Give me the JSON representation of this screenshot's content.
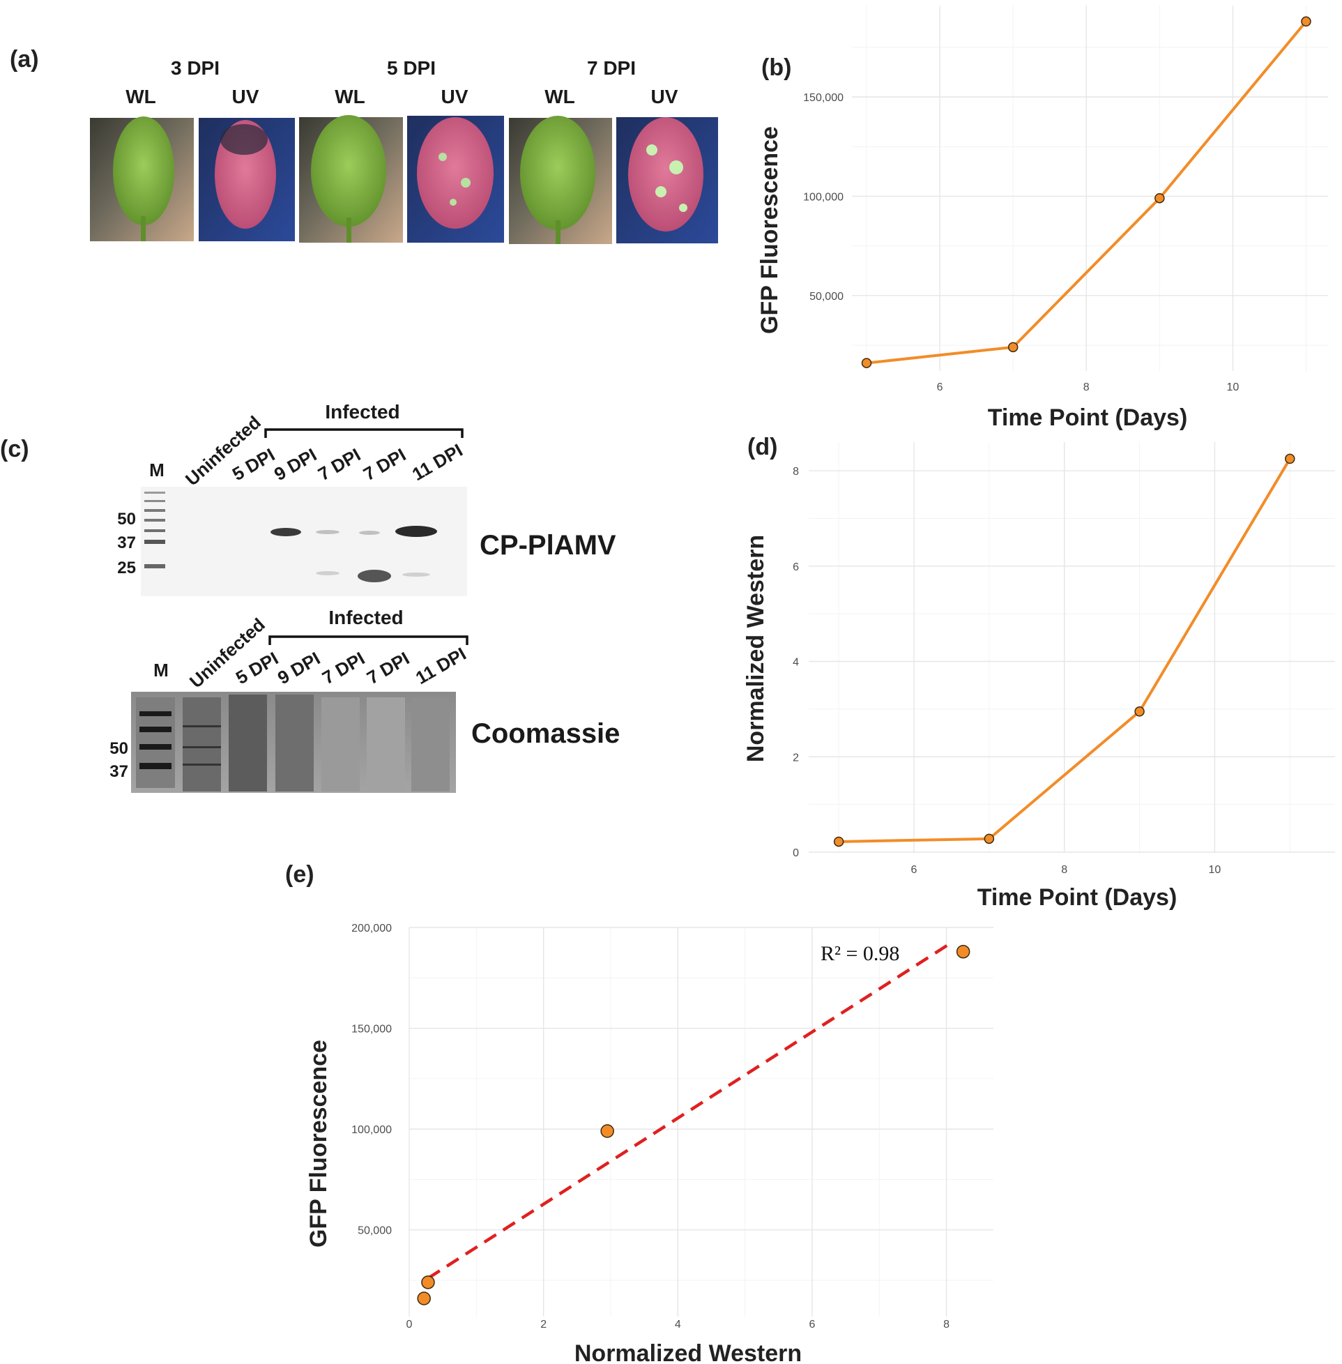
{
  "panels": {
    "a": {
      "label": "(a)",
      "groups": [
        {
          "title": "3 DPI",
          "wl": "WL",
          "uv": "UV"
        },
        {
          "title": "5 DPI",
          "wl": "WL",
          "uv": "UV"
        },
        {
          "title": "7 DPI",
          "wl": "WL",
          "uv": "UV"
        }
      ]
    },
    "c": {
      "label": "(c)",
      "blot1": {
        "marker": "M",
        "lanes": [
          "Uninfected",
          "5 DPI",
          "9 DPI",
          "7 DPI",
          "7 DPI",
          "11 DPI"
        ],
        "infected_label": "Infected",
        "mw": [
          "50",
          "37",
          "25"
        ],
        "name": "CP-PlAMV"
      },
      "blot2": {
        "marker": "M",
        "lanes": [
          "Uninfected",
          "5 DPI",
          "9 DPI",
          "7 DPI",
          "7 DPI",
          "11 DPI"
        ],
        "infected_label": "Infected",
        "mw": [
          "50",
          "37"
        ],
        "name": "Coomassie"
      }
    },
    "b": {
      "label": "(b)"
    },
    "d": {
      "label": "(d)"
    },
    "e": {
      "label": "(e)",
      "annotation": "R² = 0.98"
    }
  },
  "colors": {
    "series": "#f28c28",
    "fit": "#e02020"
  },
  "chart_data": [
    {
      "id": "b",
      "type": "line",
      "title": "",
      "xlabel": "Time Point (Days)",
      "ylabel": "GFP Fluorescence",
      "x": [
        5,
        7,
        9,
        11
      ],
      "y": [
        16000,
        24000,
        99000,
        188000
      ],
      "xlim": [
        4.8,
        11.3
      ],
      "ylim": [
        12000,
        196000
      ],
      "xticks": [
        6,
        8,
        10
      ],
      "xtick_labels": [
        "6",
        "8",
        "10"
      ],
      "yticks": [
        50000,
        100000,
        150000
      ],
      "ytick_labels": [
        "50,000",
        "100,000",
        "150,000"
      ]
    },
    {
      "id": "d",
      "type": "line",
      "title": "",
      "xlabel": "Time Point (Days)",
      "ylabel": "Normalized Western",
      "x": [
        5,
        7,
        9,
        11
      ],
      "y": [
        0.22,
        0.28,
        2.95,
        8.25
      ],
      "xlim": [
        4.6,
        11.6
      ],
      "ylim": [
        0,
        8.6
      ],
      "xticks": [
        6,
        8,
        10
      ],
      "xtick_labels": [
        "6",
        "8",
        "10"
      ],
      "yticks": [
        0,
        2,
        4,
        6,
        8
      ],
      "ytick_labels": [
        "0",
        "2",
        "4",
        "6",
        "8"
      ]
    },
    {
      "id": "e",
      "type": "scatter",
      "title": "",
      "xlabel": "Normalized Western",
      "ylabel": "GFP Fluorescence",
      "x": [
        0.22,
        0.28,
        2.95,
        8.25
      ],
      "y": [
        16000,
        24000,
        99000,
        188000
      ],
      "fit": {
        "x": [
          0.28,
          8.1
        ],
        "y": [
          26000,
          193000
        ],
        "r2": 0.98
      },
      "xlim": [
        0,
        8.7
      ],
      "ylim": [
        7000,
        200000
      ],
      "xticks": [
        0,
        2,
        4,
        6,
        8
      ],
      "xtick_labels": [
        "0",
        "2",
        "4",
        "6",
        "8"
      ],
      "yticks": [
        50000,
        100000,
        150000,
        200000
      ],
      "ytick_labels": [
        "50,000",
        "100,000",
        "150,000",
        "200,000"
      ]
    }
  ]
}
